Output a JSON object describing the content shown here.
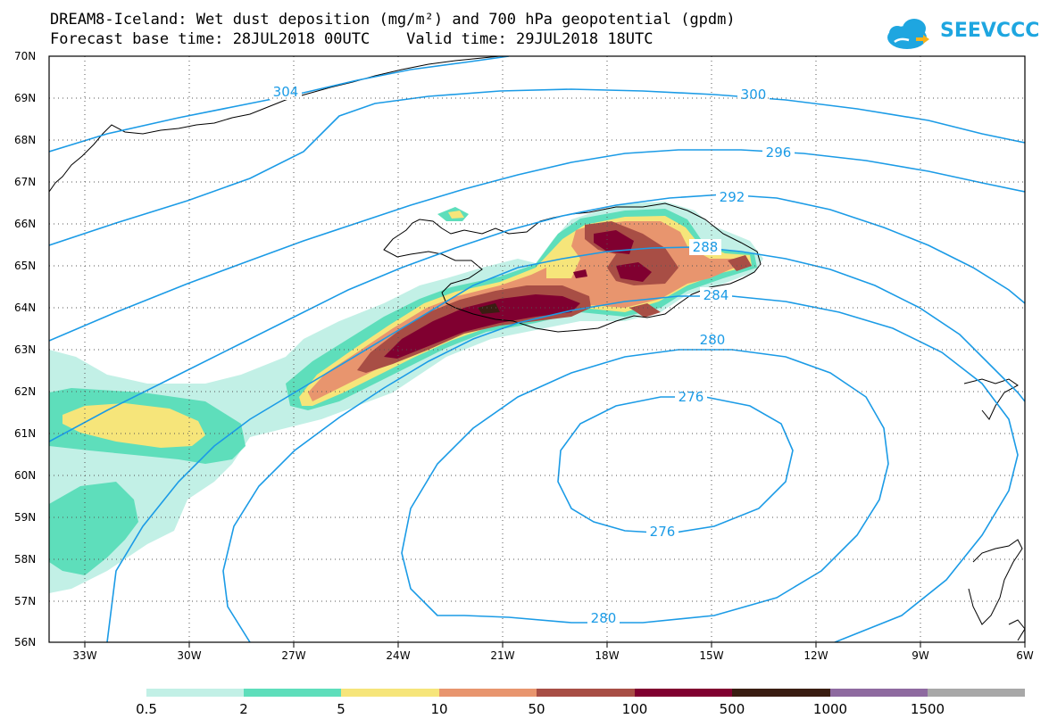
{
  "title": {
    "line1": "DREAM8-Iceland: Wet dust deposition (mg/m²) and 700 hPa geopotential (gpdm)",
    "line2": "Forecast base time: 28JUL2018 00UTC    Valid time: 29JUL2018 18UTC"
  },
  "logo": {
    "text": "SEEVCCC",
    "icon": "cloud-arrow-icon",
    "color": "#1ea6e0"
  },
  "map": {
    "lat_labels": [
      "70N",
      "69N",
      "68N",
      "67N",
      "66N",
      "65N",
      "64N",
      "63N",
      "62N",
      "61N",
      "60N",
      "59N",
      "58N",
      "57N",
      "56N"
    ],
    "lon_labels": [
      "33W",
      "30W",
      "27W",
      "24W",
      "21W",
      "18W",
      "15W",
      "12W",
      "9W",
      "6W"
    ],
    "contour_color": "#1b9be6",
    "contour_labels": [
      "304",
      "300",
      "296",
      "292",
      "288",
      "284",
      "280",
      "276",
      "276",
      "280"
    ]
  },
  "colorbar": {
    "labels": [
      "0.5",
      "2",
      "5",
      "10",
      "50",
      "100",
      "500",
      "1000",
      "1500"
    ],
    "colors": [
      "#c2f0e6",
      "#5ede bb",
      "#f6e57a",
      "#e8956e",
      "#a84e45",
      "#800030",
      "#3a1d12",
      "#8e6aa0",
      "#a8a8a8"
    ]
  }
}
